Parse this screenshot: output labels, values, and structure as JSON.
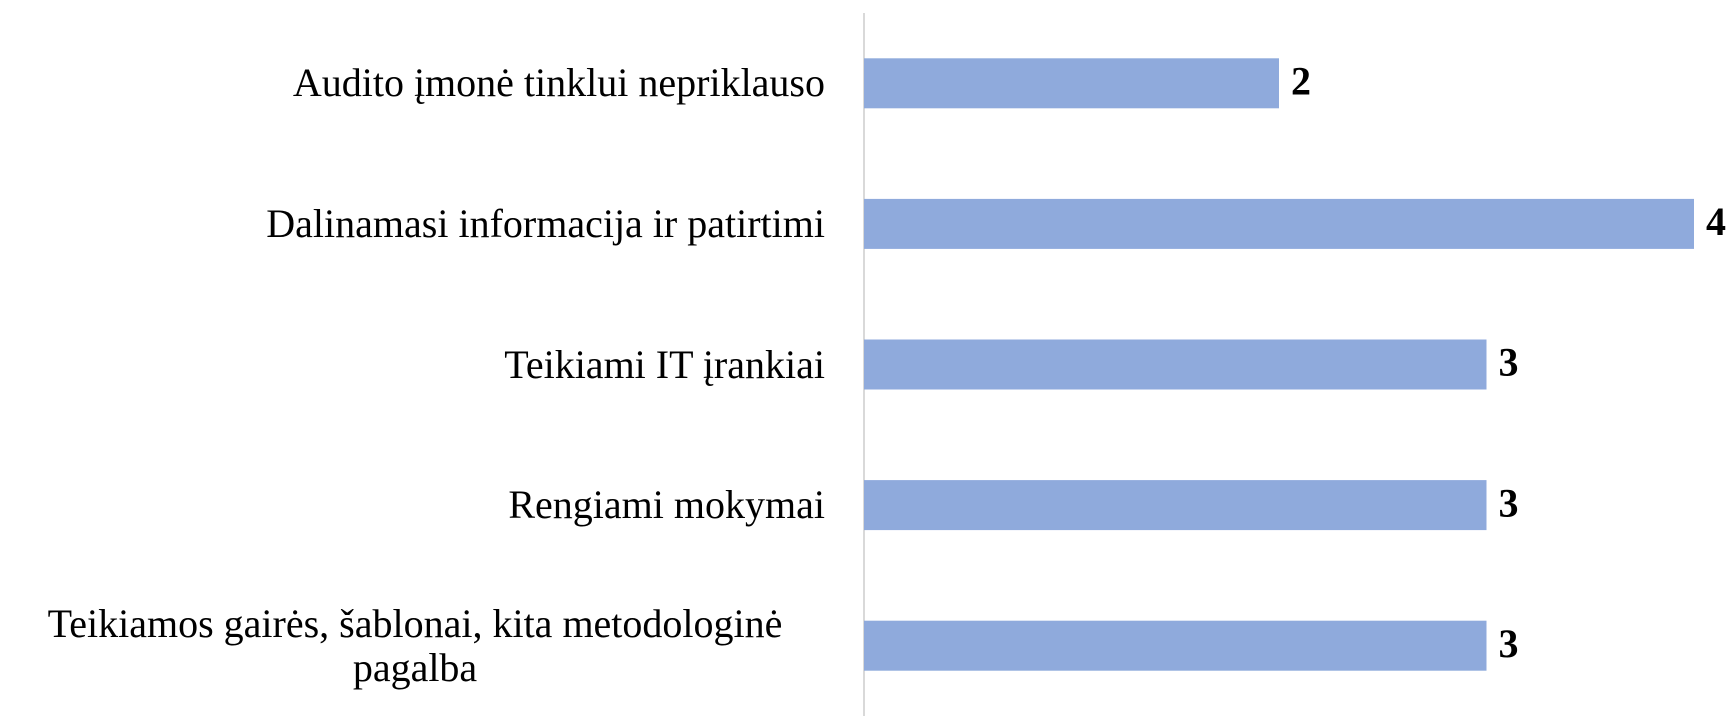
{
  "chart_data": {
    "type": "barh",
    "categories": [
      "Audito įmonė tinklui nepriklauso",
      "Dalinamasi informacija ir patirtimi",
      "Teikiami IT įrankiai",
      "Rengiami mokymai",
      "Teikiamos gairės, šablonai, kita metodologinė pagalba"
    ],
    "values": [
      2,
      4,
      3,
      3,
      3
    ],
    "color": "#8faadc",
    "xlim": [
      0,
      4
    ]
  }
}
